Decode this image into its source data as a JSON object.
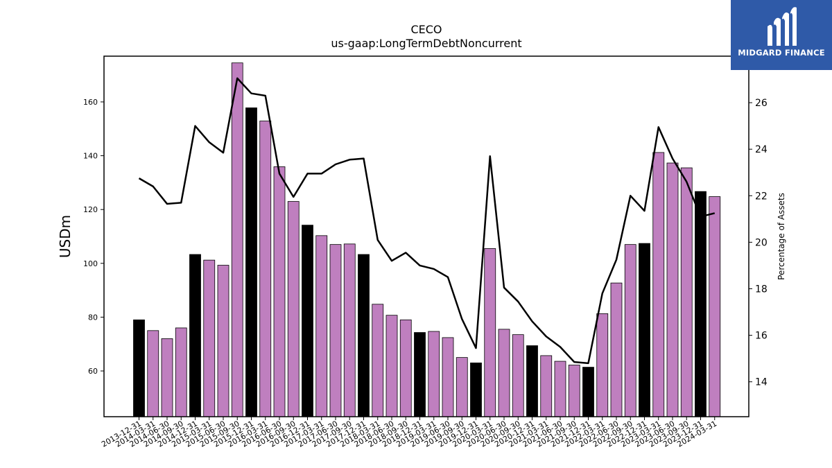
{
  "brand": {
    "name": "MIDGARD FINANCE",
    "bg_color": "#2f5aa8",
    "icon": "midgard-logo-icon"
  },
  "chart_data": {
    "type": "bar",
    "title": "CECO",
    "subtitle": "us-gaap:LongTermDebtNoncurrent",
    "ylabel": "USDm",
    "y2label": "Percentage of Assets",
    "ylim": [
      43,
      177
    ],
    "y2lim": [
      12.5,
      28.0
    ],
    "yticks": [
      60,
      80,
      100,
      120,
      140,
      160
    ],
    "y2ticks": [
      14,
      16,
      18,
      20,
      22,
      24,
      26
    ],
    "grid": false,
    "legend": "none",
    "bar_color": "#bf7fbf",
    "bar_highlight_color": "#000000",
    "line_color": "#000000",
    "categories": [
      "2013-12-31",
      "2014-03-31",
      "2014-06-30",
      "2014-09-30",
      "2014-12-31",
      "2015-03-31",
      "2015-06-30",
      "2015-09-30",
      "2015-12-31",
      "2016-03-31",
      "2016-06-30",
      "2016-09-30",
      "2016-12-31",
      "2017-03-31",
      "2017-06-30",
      "2017-09-30",
      "2017-12-31",
      "2018-03-31",
      "2018-06-30",
      "2018-09-30",
      "2018-12-31",
      "2019-03-31",
      "2019-06-30",
      "2019-09-30",
      "2019-12-31",
      "2020-03-31",
      "2020-06-30",
      "2020-09-30",
      "2020-12-31",
      "2021-03-31",
      "2021-06-30",
      "2021-09-30",
      "2021-12-31",
      "2022-03-31",
      "2022-06-30",
      "2022-09-30",
      "2022-12-31",
      "2023-03-31",
      "2023-06-30",
      "2023-09-30",
      "2023-12-31",
      "2024-03-31"
    ],
    "series": [
      {
        "type": "bar",
        "axis": "left",
        "values": [
          79.0,
          75.0,
          72.0,
          76.0,
          103.3,
          101.2,
          99.3,
          174.5,
          157.8,
          152.9,
          135.9,
          123.0,
          114.2,
          110.3,
          107.0,
          107.2,
          103.3,
          84.8,
          80.7,
          79.0,
          74.3,
          74.7,
          72.4,
          65.0,
          63.0,
          105.5,
          75.5,
          73.5,
          69.4,
          65.7,
          63.6,
          62.2,
          61.4,
          81.3,
          92.7,
          107.0,
          107.4,
          141.2,
          137.3,
          135.5,
          126.7,
          124.8
        ],
        "highlight": [
          true,
          false,
          false,
          false,
          true,
          false,
          false,
          false,
          true,
          false,
          false,
          false,
          true,
          false,
          false,
          false,
          true,
          false,
          false,
          false,
          true,
          false,
          false,
          false,
          true,
          false,
          false,
          false,
          true,
          false,
          false,
          false,
          true,
          false,
          false,
          false,
          true,
          false,
          false,
          false,
          true,
          false
        ]
      },
      {
        "type": "line",
        "axis": "right",
        "values": [
          22.75,
          22.4,
          21.65,
          21.7,
          25.0,
          24.3,
          23.85,
          27.05,
          26.4,
          26.3,
          22.95,
          21.95,
          22.95,
          22.95,
          23.35,
          23.55,
          23.6,
          20.1,
          19.2,
          19.55,
          19.0,
          18.85,
          18.5,
          16.7,
          15.45,
          23.7,
          18.05,
          17.45,
          16.6,
          15.95,
          15.5,
          14.85,
          14.8,
          17.8,
          19.25,
          22.0,
          21.35,
          24.95,
          23.6,
          22.6,
          21.1,
          21.25
        ]
      }
    ]
  }
}
